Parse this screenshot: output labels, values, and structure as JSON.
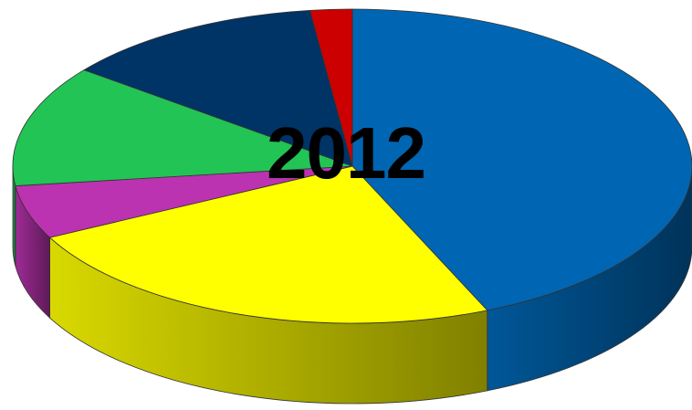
{
  "chart_data": {
    "type": "pie",
    "style": "3d",
    "title": "2012",
    "legend": "none",
    "data_labels": "none",
    "slices": [
      {
        "value": 43.5,
        "color": "#0066b3"
      },
      {
        "value": 24.0,
        "color": "#ffff00"
      },
      {
        "value": 5.5,
        "color": "#bb33b0"
      },
      {
        "value": 12.5,
        "color": "#22c455"
      },
      {
        "value": 12.5,
        "color": "#003366"
      },
      {
        "value": 2.0,
        "color": "#cc0000"
      }
    ]
  }
}
